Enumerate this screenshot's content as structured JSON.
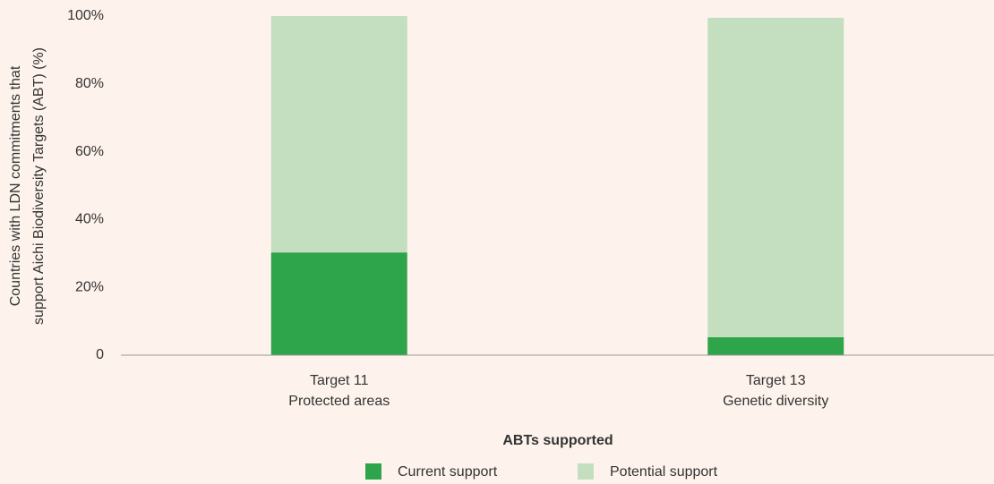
{
  "chart_data": {
    "type": "stacked_bar",
    "categories": [
      [
        "Target 11",
        "Protected areas"
      ],
      [
        "Target 13",
        "Genetic diversity"
      ]
    ],
    "series": [
      {
        "name": "Current support",
        "color": "#2ea44b",
        "values": [
          30.3,
          5.3
        ]
      },
      {
        "name": "Potential support",
        "color": "#c4dfc0",
        "values": [
          69.7,
          94.2
        ]
      }
    ],
    "ylim": [
      0,
      100
    ],
    "yticks": [
      0,
      {
        "value": 20,
        "label": "20%"
      },
      {
        "value": 40,
        "label": "40%"
      },
      {
        "value": 60,
        "label": "60%"
      },
      {
        "value": 80,
        "label": "80%"
      },
      {
        "value": 100,
        "label": "100%"
      }
    ],
    "xlabel": "ABTs supported",
    "ylabel": [
      "Countries with LDN commitments that",
      "support Aichi Biodiversity Targets (ABT) (%)"
    ],
    "legend": "bottom"
  }
}
